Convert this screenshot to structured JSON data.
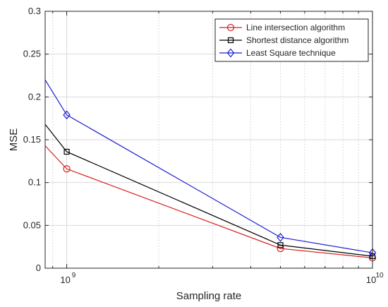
{
  "chart_data": {
    "type": "line",
    "xlabel": "Sampling rate",
    "ylabel": "MSE",
    "xscale": "log",
    "xlim": [
      850000000,
      10000000000
    ],
    "ylim": [
      0,
      0.3
    ],
    "grid": true,
    "legend_position": "top-right",
    "y_ticks": [
      {
        "value": 0,
        "label": "0"
      },
      {
        "value": 0.05,
        "label": "0.05"
      },
      {
        "value": 0.1,
        "label": "0.1"
      },
      {
        "value": 0.15,
        "label": "0.15"
      },
      {
        "value": 0.2,
        "label": "0.2"
      },
      {
        "value": 0.25,
        "label": "0.25"
      },
      {
        "value": 0.3,
        "label": "0.3"
      }
    ],
    "x_major_ticks": [
      {
        "value": 1000000000,
        "base": "10",
        "exp": "9"
      },
      {
        "value": 10000000000,
        "base": "10",
        "exp": "10"
      }
    ],
    "x_minor_ticks": [
      900000000,
      2000000000,
      3000000000,
      4000000000,
      5000000000,
      6000000000,
      7000000000,
      8000000000,
      9000000000
    ],
    "series": [
      {
        "name": "Line intersection algorithm",
        "color": "#d62020",
        "marker": "circle",
        "x": [
          850000000,
          1000000000,
          5000000000,
          10000000000
        ],
        "y": [
          0.143,
          0.116,
          0.023,
          0.012
        ],
        "marker_from_index": 1
      },
      {
        "name": "Shortest distance algorithm",
        "color": "#000000",
        "marker": "square",
        "x": [
          850000000,
          1000000000,
          5000000000,
          10000000000
        ],
        "y": [
          0.168,
          0.136,
          0.027,
          0.014
        ],
        "marker_from_index": 1
      },
      {
        "name": "Least Square technique",
        "color": "#1f1fd6",
        "marker": "diamond",
        "x": [
          850000000,
          1000000000,
          5000000000,
          10000000000
        ],
        "y": [
          0.22,
          0.179,
          0.036,
          0.018
        ],
        "marker_from_index": 1
      }
    ]
  }
}
